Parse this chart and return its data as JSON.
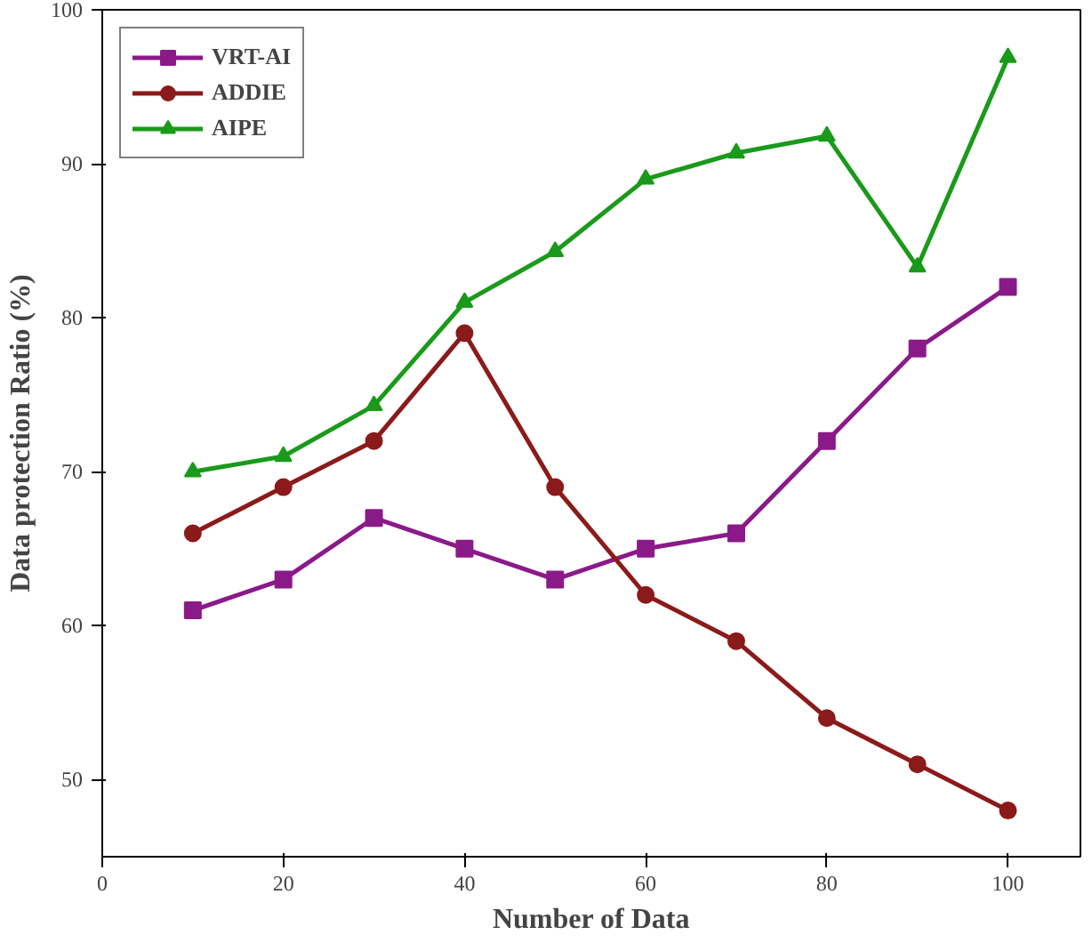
{
  "chart_data": {
    "type": "line",
    "xlabel": "Number of Data",
    "ylabel": "Data protection Ratio (%)",
    "x": [
      10,
      20,
      30,
      40,
      50,
      60,
      70,
      80,
      90,
      100
    ],
    "xlim": [
      0,
      108
    ],
    "xticks": [
      0,
      20,
      40,
      60,
      80,
      100
    ],
    "ylim": [
      45,
      100
    ],
    "yticks": [
      50,
      60,
      70,
      80,
      90,
      100
    ],
    "grid": false,
    "legend": "top left",
    "line_style": "solid",
    "series": [
      {
        "name": "VRT-AI",
        "color": "#8b1a89",
        "marker": "square",
        "values": [
          61,
          63,
          67,
          65,
          63,
          65,
          66,
          72,
          78,
          82
        ]
      },
      {
        "name": "ADDIE",
        "color": "#8b1a1a",
        "marker": "circle",
        "values": [
          66,
          69,
          72,
          79,
          69,
          62,
          59,
          54,
          51,
          48
        ]
      },
      {
        "name": "AIPE",
        "color": "#1a9a1a",
        "marker": "triangle",
        "values": [
          70,
          71,
          74.3,
          81,
          84.3,
          89,
          90.7,
          91.8,
          83.3,
          96.9
        ]
      }
    ]
  }
}
